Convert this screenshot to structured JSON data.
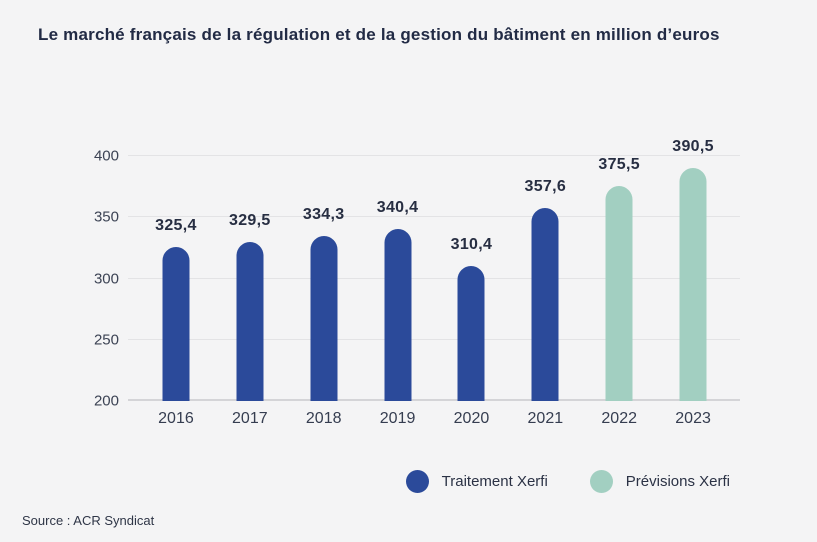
{
  "chart_data": {
    "type": "bar",
    "title": "Le marché français de la régulation et de la gestion du bâtiment en million d’euros",
    "categories": [
      "2016",
      "2017",
      "2018",
      "2019",
      "2020",
      "2021",
      "2022",
      "2023"
    ],
    "series": [
      {
        "name": "Traitement Xerfi",
        "color": "#2b4a9a",
        "values": [
          325.4,
          329.5,
          334.3,
          340.4,
          310.4,
          357.6,
          null,
          null
        ]
      },
      {
        "name": "Prévisions Xerfi",
        "color": "#a2cfc1",
        "values": [
          null,
          null,
          null,
          null,
          null,
          null,
          375.5,
          390.5
        ]
      }
    ],
    "value_labels": [
      "325,4",
      "329,5",
      "334,3",
      "340,4",
      "310,4",
      "357,6",
      "375,5",
      "390,5"
    ],
    "xlabel": "",
    "ylabel": "",
    "ylim": [
      200,
      400
    ],
    "yticks": [
      200,
      250,
      300,
      350,
      400
    ],
    "grid": true,
    "legend_position": "bottom"
  },
  "legend": [
    {
      "label": "Traitement Xerfi",
      "color": "#2b4a9a"
    },
    {
      "label": "Prévisions Xerfi",
      "color": "#a2cfc1"
    }
  ],
  "source": "Source : ACR Syndicat",
  "colors": {
    "background": "#f4f4f5",
    "title_text": "#222b45",
    "value_text": "#272e42",
    "tick_text": "#3c4354",
    "gridline": "#e3e3e5",
    "axis_baseline": "#d4d4d7",
    "bar_primary": "#2b4a9a",
    "bar_forecast": "#a2cfc1"
  }
}
